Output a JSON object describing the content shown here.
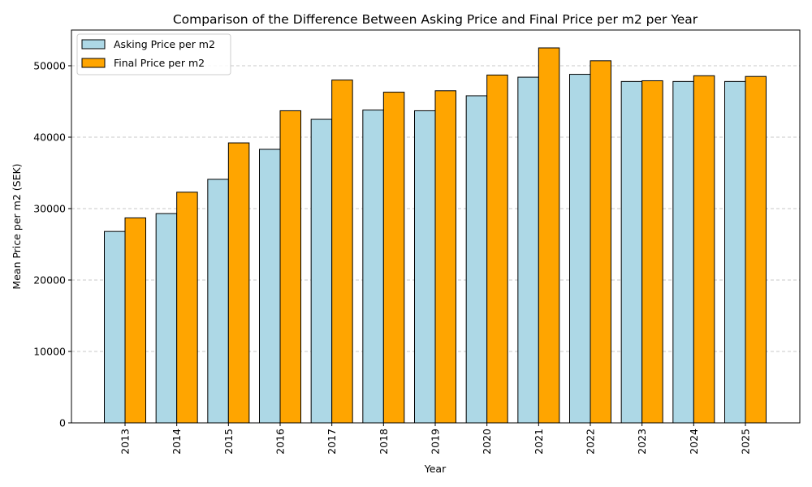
{
  "chart_data": {
    "type": "bar",
    "title": "Comparison of the Difference Between Asking Price and Final Price per m2 per Year",
    "xlabel": "Year",
    "ylabel": "Mean Price per m2 (SEK)",
    "categories": [
      "2013",
      "2014",
      "2015",
      "2016",
      "2017",
      "2018",
      "2019",
      "2020",
      "2021",
      "2022",
      "2023",
      "2024",
      "2025"
    ],
    "series": [
      {
        "name": "Asking Price per m2",
        "color": "#add8e6",
        "values": [
          26800,
          29300,
          34100,
          38300,
          42500,
          43800,
          43700,
          45800,
          48400,
          48800,
          47800,
          47800,
          47800
        ]
      },
      {
        "name": "Final Price per m2",
        "color": "#ffa500",
        "values": [
          28700,
          32300,
          39200,
          43700,
          48000,
          46300,
          46500,
          48700,
          52500,
          50700,
          47900,
          48600,
          48500
        ]
      }
    ],
    "ylim": [
      0,
      55000
    ],
    "yticks": [
      0,
      10000,
      20000,
      30000,
      40000,
      50000
    ],
    "grid": "y-dashed",
    "legend": "top-left"
  }
}
